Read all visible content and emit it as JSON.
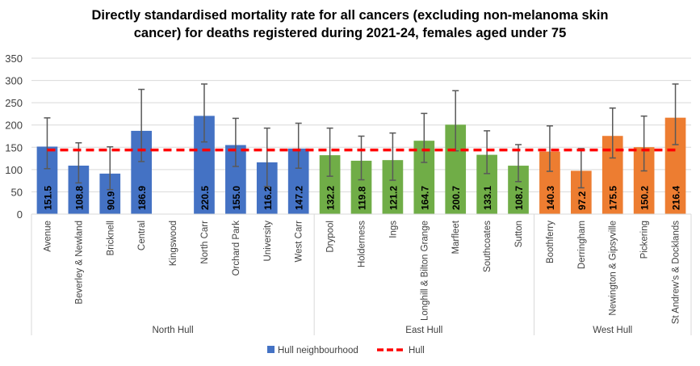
{
  "chart_data": {
    "type": "bar",
    "title_lines": [
      "Directly standardised  mortality rate for all cancers (excluding non-melanoma skin",
      "cancer)  for deaths registered during 2021-24, females aged under 75"
    ],
    "ylim": [
      0,
      350
    ],
    "yticks": [
      0,
      50,
      100,
      150,
      200,
      250,
      300,
      350
    ],
    "grid": true,
    "legend_position": "bottom",
    "colors": {
      "North Hull": "#4472C4",
      "East Hull": "#70AD47",
      "West Hull": "#ED7D31",
      "reference": "#FF0000"
    },
    "groups": [
      {
        "name": "North Hull",
        "categories": [
          "Avenue",
          "Beverley & Newland",
          "Bricknell",
          "Central",
          "Kingswood",
          "North Carr",
          "Orchard Park",
          "University",
          "West Carr"
        ],
        "values": [
          151.5,
          108.8,
          90.9,
          186.9,
          null,
          220.5,
          155.0,
          116.2,
          147.2
        ],
        "lower": [
          102,
          70,
          55,
          118,
          null,
          162,
          107,
          62,
          103
        ],
        "upper": [
          216,
          160,
          151,
          280,
          null,
          292,
          215,
          193,
          204
        ]
      },
      {
        "name": "East Hull",
        "categories": [
          "Drypool",
          "Holderness",
          "Ings",
          "Longhill & Bilton Grange",
          "Marfleet",
          "Southcoates",
          "Sutton"
        ],
        "values": [
          132.2,
          119.8,
          121.2,
          164.7,
          200.7,
          133.1,
          108.7
        ],
        "lower": [
          85,
          77,
          76,
          116,
          142,
          91,
          73
        ],
        "upper": [
          193,
          175,
          182,
          226,
          277,
          187,
          156
        ]
      },
      {
        "name": "West Hull",
        "categories": [
          "Boothferry",
          "Derringham",
          "Newington & Gipsyville",
          "Pickering",
          "St Andrew's & Docklands"
        ],
        "values": [
          140.3,
          97.2,
          175.5,
          150.2,
          216.4
        ],
        "lower": [
          96,
          59,
          126,
          97,
          156
        ],
        "upper": [
          198,
          147,
          238,
          220,
          292
        ]
      }
    ],
    "reference": {
      "name": "Hull",
      "value": 144
    },
    "legend": [
      "Hull neighbourhood",
      "Hull"
    ]
  }
}
